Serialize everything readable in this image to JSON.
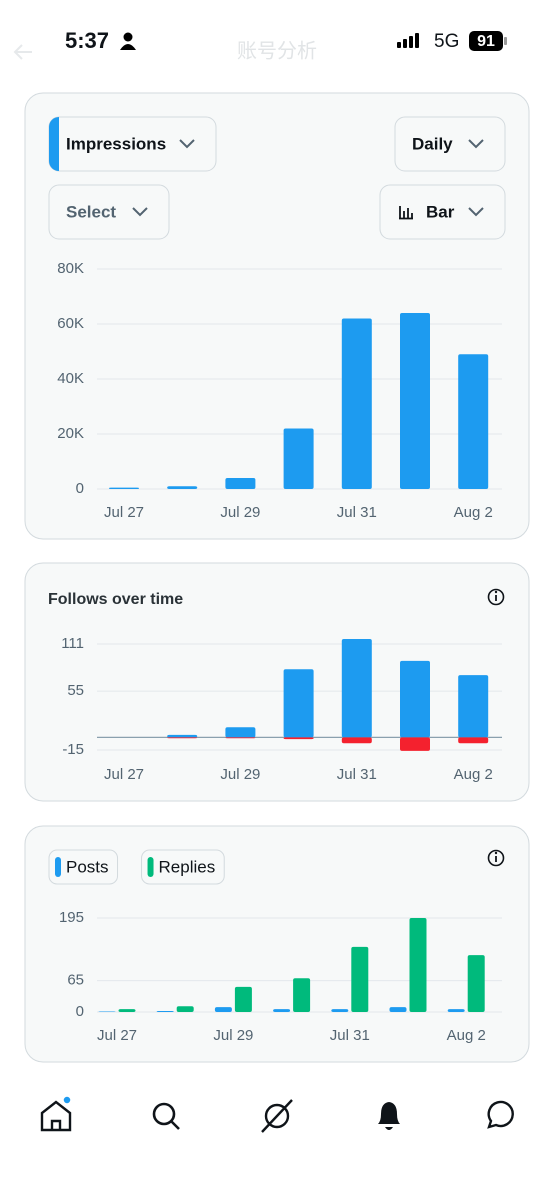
{
  "status_bar": {
    "time": "5:37",
    "network": "5G",
    "battery": "91"
  },
  "header": {
    "title": "账号分析"
  },
  "controls": {
    "metric": "Impressions",
    "interval": "Daily",
    "filter": "Select",
    "chart_style": "Bar"
  },
  "chart_data": [
    {
      "type": "bar",
      "categories": [
        "Jul 27",
        null,
        "Jul 29",
        null,
        "Jul 31",
        null,
        "Aug 2"
      ],
      "values": [
        500,
        1000,
        4000,
        22000,
        62000,
        64000,
        49000
      ],
      "color": "#1d9bf0",
      "ylim": [
        0,
        80000
      ],
      "yticks": [
        0,
        {
          "value": 20000,
          "label": "20K"
        },
        {
          "value": 40000,
          "label": "40K"
        },
        {
          "value": 60000,
          "label": "60K"
        },
        {
          "value": 80000,
          "label": "80K"
        }
      ],
      "grid": true
    },
    {
      "type": "bar",
      "title": "Follows over time",
      "stacked": true,
      "categories": [
        "Jul 27",
        null,
        "Jul 29",
        null,
        "Jul 31",
        null,
        "Aug 2"
      ],
      "series": [
        {
          "color": "#1d9bf0",
          "values": [
            0,
            3,
            12,
            81,
            117,
            91,
            74
          ]
        },
        {
          "color": "#f4212e",
          "values": [
            0,
            -1,
            -1,
            -2,
            -7,
            -16,
            -7
          ]
        }
      ],
      "ylim": [
        -15,
        111
      ],
      "yticks": [
        -15,
        55,
        111
      ],
      "grid": true
    },
    {
      "type": "bar",
      "categories": [
        "Jul 27",
        null,
        "Jul 29",
        null,
        "Jul 31",
        null,
        "Aug 2"
      ],
      "series": [
        {
          "name": "Posts",
          "color": "#1d9bf0",
          "values": [
            1,
            2,
            10,
            6,
            6,
            10,
            6
          ]
        },
        {
          "name": "Replies",
          "color": "#00ba7c",
          "values": [
            6,
            12,
            52,
            70,
            135,
            195,
            118
          ]
        }
      ],
      "ylim": [
        0,
        195
      ],
      "yticks": [
        0,
        65,
        195
      ],
      "grid": true
    }
  ]
}
